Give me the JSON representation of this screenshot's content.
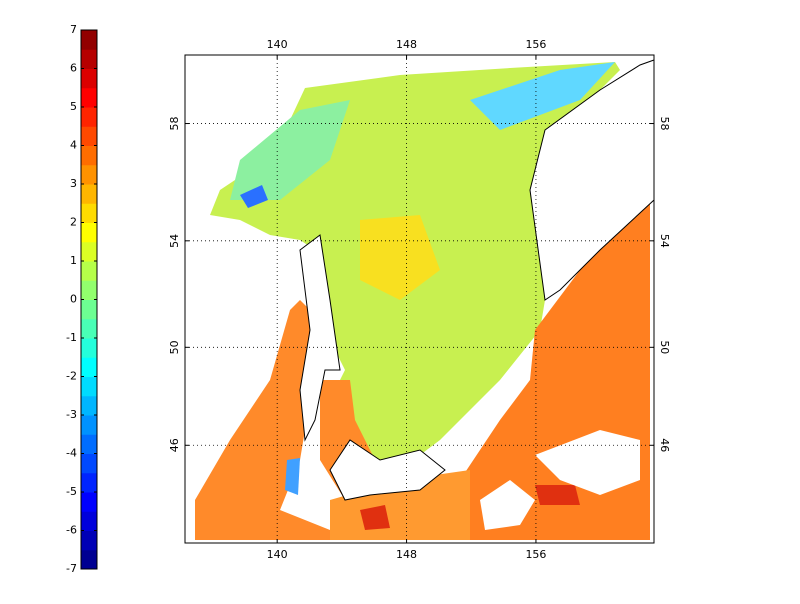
{
  "map": {
    "type": "map",
    "projection": "mercator",
    "xlim": [
      134.3,
      163.3
    ],
    "xticks": [
      140,
      148,
      156
    ],
    "ylim": [
      41.7,
      60.15
    ],
    "yticks": [
      46,
      50,
      54,
      58
    ],
    "grid": true,
    "colorbar": {
      "lim": [
        -7,
        7
      ],
      "ticks": [
        -7,
        -6,
        -5,
        -4,
        -3,
        -2,
        -1,
        0,
        1,
        2,
        3,
        4,
        5,
        6,
        7
      ],
      "levels": 28,
      "colormap": "jet"
    }
  }
}
